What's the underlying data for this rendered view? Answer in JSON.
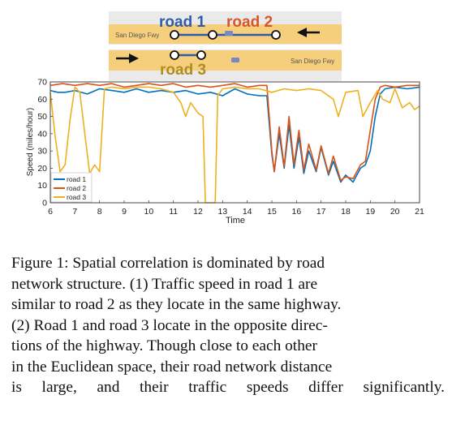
{
  "map": {
    "road_labels": [
      "road 1",
      "road 2",
      "road 3"
    ],
    "highway_name_top": "San Diego Fwy",
    "highway_name_bottom": "San Diego Fwy",
    "colors": {
      "road_band": "#f6cf7c",
      "road_band_top_edge": "#d8d8d8",
      "road1": "#2f5ca8",
      "road2": "#d9552b",
      "road3": "#b28d1e",
      "shield": "#7b86c5"
    },
    "icons": [
      "arrow-left-icon",
      "arrow-right-icon",
      "highway-shield-icon"
    ]
  },
  "chart_data": {
    "type": "line",
    "xlabel": "Time",
    "ylabel": "Speed (miles/hour)",
    "xlim": [
      6,
      21
    ],
    "ylim": [
      0,
      70
    ],
    "xticks": [
      6,
      7,
      8,
      9,
      10,
      11,
      12,
      13,
      14,
      15,
      16,
      17,
      18,
      19,
      20,
      21
    ],
    "yticks": [
      0,
      10,
      20,
      30,
      40,
      50,
      60,
      70
    ],
    "grid": false,
    "legend": "bottom-left",
    "series": [
      {
        "name": "road 1",
        "color": "#0072bd",
        "points": [
          [
            6,
            65
          ],
          [
            6.3,
            64
          ],
          [
            6.6,
            64
          ],
          [
            7,
            65
          ],
          [
            7.5,
            63
          ],
          [
            8,
            66
          ],
          [
            8.5,
            65
          ],
          [
            9,
            64
          ],
          [
            9.5,
            66
          ],
          [
            10,
            64
          ],
          [
            10.5,
            65
          ],
          [
            11,
            64
          ],
          [
            11.5,
            65
          ],
          [
            12,
            63
          ],
          [
            12.5,
            64
          ],
          [
            13,
            62
          ],
          [
            13.5,
            66
          ],
          [
            14,
            63
          ],
          [
            14.5,
            62
          ],
          [
            14.8,
            62
          ],
          [
            15,
            28
          ],
          [
            15.1,
            18
          ],
          [
            15.3,
            40
          ],
          [
            15.5,
            20
          ],
          [
            15.7,
            45
          ],
          [
            15.9,
            20
          ],
          [
            16.1,
            38
          ],
          [
            16.3,
            17
          ],
          [
            16.5,
            30
          ],
          [
            16.8,
            18
          ],
          [
            17,
            32
          ],
          [
            17.3,
            16
          ],
          [
            17.5,
            24
          ],
          [
            17.8,
            12
          ],
          [
            18,
            16
          ],
          [
            18.3,
            12
          ],
          [
            18.6,
            20
          ],
          [
            18.8,
            22
          ],
          [
            19,
            30
          ],
          [
            19.2,
            50
          ],
          [
            19.4,
            63
          ],
          [
            19.6,
            66
          ],
          [
            20,
            67
          ],
          [
            20.5,
            66
          ],
          [
            21,
            67
          ]
        ]
      },
      {
        "name": "road 2",
        "color": "#d95319",
        "points": [
          [
            6,
            68
          ],
          [
            6.5,
            69
          ],
          [
            7,
            68
          ],
          [
            7.5,
            69
          ],
          [
            8,
            68
          ],
          [
            8.5,
            69
          ],
          [
            9,
            67
          ],
          [
            9.5,
            68
          ],
          [
            10,
            69
          ],
          [
            10.5,
            68
          ],
          [
            11,
            69
          ],
          [
            11.5,
            67
          ],
          [
            12,
            68
          ],
          [
            12.5,
            67
          ],
          [
            13,
            68
          ],
          [
            13.5,
            69
          ],
          [
            14,
            67
          ],
          [
            14.5,
            68
          ],
          [
            14.8,
            68
          ],
          [
            15,
            30
          ],
          [
            15.1,
            18
          ],
          [
            15.3,
            44
          ],
          [
            15.5,
            21
          ],
          [
            15.7,
            50
          ],
          [
            15.9,
            22
          ],
          [
            16.1,
            42
          ],
          [
            16.3,
            19
          ],
          [
            16.5,
            34
          ],
          [
            16.8,
            19
          ],
          [
            17,
            33
          ],
          [
            17.3,
            17
          ],
          [
            17.5,
            27
          ],
          [
            17.8,
            13
          ],
          [
            18,
            15
          ],
          [
            18.3,
            14
          ],
          [
            18.6,
            22
          ],
          [
            18.8,
            24
          ],
          [
            19,
            42
          ],
          [
            19.2,
            60
          ],
          [
            19.4,
            67
          ],
          [
            19.6,
            68
          ],
          [
            20,
            67
          ],
          [
            20.5,
            68
          ],
          [
            21,
            68
          ]
        ]
      },
      {
        "name": "road 3",
        "color": "#edb120",
        "points": [
          [
            6,
            64
          ],
          [
            6.2,
            38
          ],
          [
            6.4,
            18
          ],
          [
            6.6,
            22
          ],
          [
            6.8,
            48
          ],
          [
            7,
            67
          ],
          [
            7.2,
            64
          ],
          [
            7.4,
            40
          ],
          [
            7.6,
            17
          ],
          [
            7.8,
            22
          ],
          [
            8,
            18
          ],
          [
            8.2,
            66
          ],
          [
            8.5,
            67
          ],
          [
            9,
            66
          ],
          [
            9.5,
            67
          ],
          [
            10,
            67
          ],
          [
            10.5,
            66
          ],
          [
            11,
            64
          ],
          [
            11.3,
            58
          ],
          [
            11.5,
            50
          ],
          [
            11.7,
            58
          ],
          [
            12,
            52
          ],
          [
            12.2,
            50
          ],
          [
            12.3,
            0
          ],
          [
            12.7,
            0
          ],
          [
            12.8,
            62
          ],
          [
            13,
            66
          ],
          [
            13.5,
            67
          ],
          [
            14,
            66
          ],
          [
            14.5,
            66
          ],
          [
            15,
            64
          ],
          [
            15.5,
            66
          ],
          [
            16,
            65
          ],
          [
            16.5,
            66
          ],
          [
            17,
            65
          ],
          [
            17.5,
            60
          ],
          [
            17.7,
            50
          ],
          [
            18,
            64
          ],
          [
            18.5,
            65
          ],
          [
            18.7,
            50
          ],
          [
            19,
            58
          ],
          [
            19.3,
            65
          ],
          [
            19.5,
            60
          ],
          [
            19.8,
            58
          ],
          [
            20,
            66
          ],
          [
            20.3,
            55
          ],
          [
            20.6,
            58
          ],
          [
            20.8,
            54
          ],
          [
            21,
            56
          ]
        ]
      }
    ]
  },
  "caption": {
    "lines": [
      "Figure 1: Spatial correlation is dominated by road",
      "network structure. (1) Traffic speed in road 1 are",
      "similar to road 2 as they locate in the same highway.",
      "(2) Road 1 and road 3 locate in the opposite direc-",
      "tions of the highway. Though close to each other",
      "in the Euclidean space, their road network distance",
      "is large, and their traffic speeds differ significantly."
    ]
  }
}
